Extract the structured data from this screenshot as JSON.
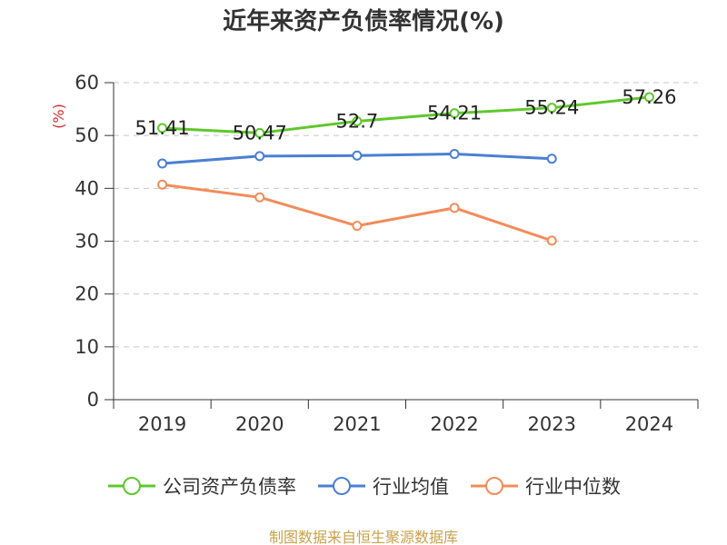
{
  "title": "近年来资产负债率情况(%)",
  "source": "制图数据来自恒生聚源数据库",
  "chart_data": {
    "type": "line",
    "title": "近年来资产负债率情况(%)",
    "ylabel": "(%)",
    "xlabel": "",
    "ylim": [
      0,
      60
    ],
    "yticks": [
      0,
      10,
      20,
      30,
      40,
      50,
      60
    ],
    "categories": [
      "2019",
      "2020",
      "2021",
      "2022",
      "2023",
      "2024"
    ],
    "grid": true,
    "legend_position": "bottom",
    "series": [
      {
        "name": "公司资产负债率",
        "color": "#5ec82c",
        "values": [
          51.41,
          50.47,
          52.7,
          54.21,
          55.24,
          57.26
        ],
        "data_labels": [
          "51.41",
          "50.47",
          "52.7",
          "54.21",
          "55.24",
          "57.26"
        ]
      },
      {
        "name": "行业均值",
        "color": "#4a7fd4",
        "values": [
          44.7,
          46.1,
          46.2,
          46.5,
          45.6,
          null
        ]
      },
      {
        "name": "行业中位数",
        "color": "#f28c5a",
        "values": [
          40.7,
          38.3,
          32.9,
          36.3,
          30.1,
          null
        ]
      }
    ]
  }
}
